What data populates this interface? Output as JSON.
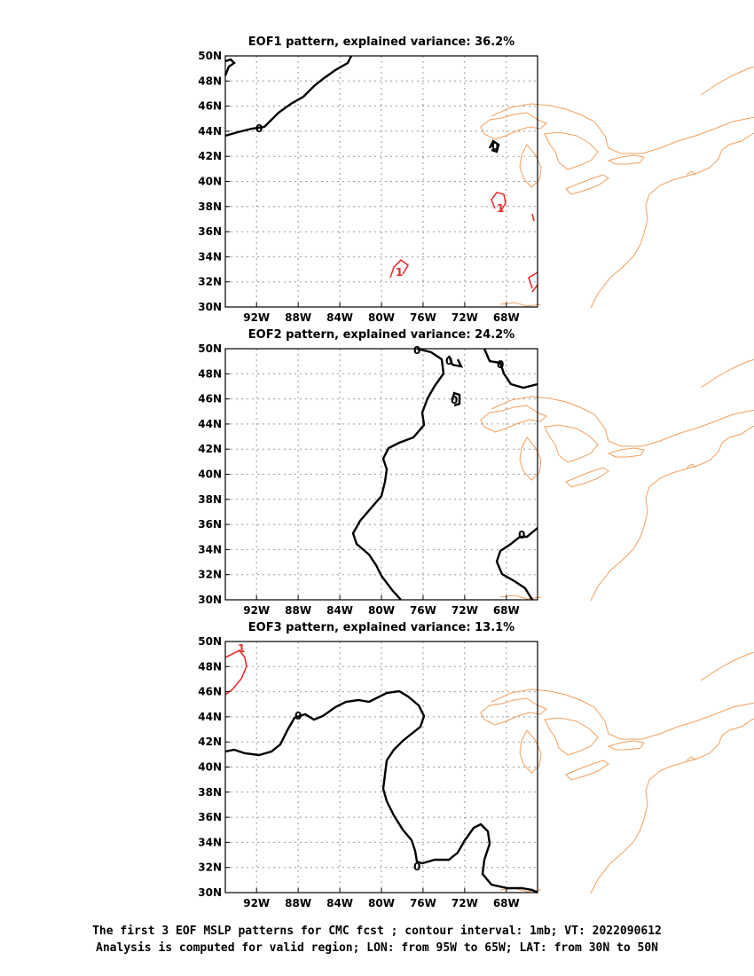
{
  "panels": [
    {
      "title": "EOF1 pattern, explained variance: 36.2%"
    },
    {
      "title": "EOF2 pattern, explained variance: 24.2%"
    },
    {
      "title": "EOF3 pattern, explained variance: 13.1%"
    }
  ],
  "axes": {
    "lat_labels": [
      "30N",
      "32N",
      "34N",
      "36N",
      "38N",
      "40N",
      "42N",
      "44N",
      "46N",
      "48N",
      "50N"
    ],
    "lon_labels": [
      "92W",
      "88W",
      "84W",
      "80W",
      "76W",
      "72W",
      "68W"
    ],
    "lat_range": [
      30,
      50
    ],
    "lon_range": [
      -95,
      -65
    ],
    "grid": "dotted"
  },
  "contour_labels": {
    "zero": "0",
    "one": "1"
  },
  "colors": {
    "coast": "#f0a060",
    "zero_contour": "#000000",
    "positive_contour": "#e83030",
    "grid": "#999999"
  },
  "caption": {
    "line1": "The first 3 EOF MSLP patterns for CMC fcst ; contour interval: 1mb; VT: 2022090612",
    "line2": "Analysis is computed for valid region; LON: from 95W to 65W; LAT: from 30N to 50N"
  }
}
